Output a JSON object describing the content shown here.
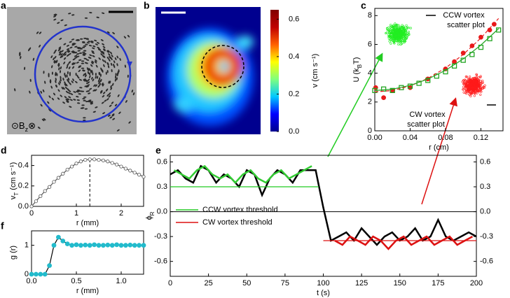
{
  "photo": {
    "label": "a",
    "field_parts": [
      "⊙B",
      "z",
      "⊗"
    ]
  },
  "chart_data": [
    {
      "type": "heatmap",
      "label": "b",
      "colorbar_label": "v (cm s⁻¹)",
      "clim": [
        0,
        0.65
      ],
      "cticks": [
        {
          "value": 0,
          "label": "0.0"
        },
        0.2,
        0.4,
        0.6
      ],
      "colormap": [
        "#00008f",
        "#0000ff",
        "#00c8ff",
        "#7fff7f",
        "#ffff00",
        "#ff6000",
        "#c00000",
        "#800000"
      ]
    },
    {
      "type": "scatter",
      "label": "c",
      "xlabel": "r (cm)",
      "ylabel": [
        "U (k",
        "B",
        "T)"
      ],
      "xlim": [
        0,
        0.145
      ],
      "ylim": [
        0,
        8.5
      ],
      "xticks": [
        {
          "value": 0,
          "label": "0.00"
        },
        0.04,
        0.08,
        0.12
      ],
      "yticks": [
        0,
        2,
        4,
        6,
        8
      ],
      "series": [
        {
          "color": "#e8191a",
          "style": "none",
          "marker": "circle",
          "x": [
            0.001,
            0.01,
            0.02,
            0.04,
            0.06,
            0.08,
            0.09,
            0.1,
            0.11,
            0.12,
            0.13,
            0.135
          ],
          "values": [
            3.0,
            2.3,
            2.8,
            3.0,
            3.6,
            4.3,
            4.8,
            5.4,
            5.9,
            6.5,
            7.0,
            7.4
          ]
        },
        {
          "color": "#22a522",
          "style": "none",
          "marker": "square-open",
          "x": [
            0,
            0.01,
            0.02,
            0.03,
            0.04,
            0.05,
            0.06,
            0.07,
            0.08,
            0.09,
            0.1,
            0.11,
            0.12,
            0.13,
            0.14
          ],
          "values": [
            2.8,
            2.9,
            2.8,
            3.0,
            3.1,
            3.3,
            3.5,
            3.8,
            4.1,
            4.5,
            4.9,
            5.3,
            5.8,
            6.4,
            7.0
          ]
        },
        {
          "color": "#e8191a",
          "style": "dashed",
          "marker": "none",
          "x": [
            0,
            0.02,
            0.04,
            0.06,
            0.08,
            0.1,
            0.12,
            0.14
          ],
          "values": [
            2.7,
            2.8,
            3.12,
            3.64,
            4.36,
            5.3,
            6.44,
            7.8
          ]
        },
        {
          "color": "#22a522",
          "style": "solid",
          "marker": "none",
          "x": [
            0,
            0.02,
            0.04,
            0.06,
            0.08,
            0.1,
            0.12,
            0.14
          ],
          "values": [
            2.8,
            2.89,
            3.15,
            3.59,
            4.2,
            4.99,
            5.95,
            7.09
          ]
        }
      ],
      "insets": [
        {
          "title": "CCW vortex",
          "subtitle": "scatter plot",
          "color": "#22ee22"
        },
        {
          "title": "CW vortex",
          "subtitle": "scatter plot",
          "color": "#ff1a1a"
        }
      ]
    },
    {
      "type": "line",
      "label": "d",
      "xlabel": "r (mm)",
      "ylabel": [
        "v",
        "T",
        " (cm s⁻¹)"
      ],
      "xlim": [
        0,
        2.5
      ],
      "ylim": [
        0,
        0.5
      ],
      "xticks": [
        0,
        1,
        2
      ],
      "yticks": [
        {
          "value": 0,
          "label": "0.0"
        },
        0.2,
        0.4
      ],
      "vline": 1.3,
      "series": [
        {
          "color": "#555555",
          "style": "solid",
          "marker": "circle-open",
          "x": [
            0,
            0.1,
            0.2,
            0.3,
            0.4,
            0.5,
            0.6,
            0.7,
            0.8,
            0.9,
            1.0,
            1.1,
            1.2,
            1.3,
            1.4,
            1.5,
            1.6,
            1.7,
            1.8,
            1.9,
            2.0,
            2.1,
            2.2,
            2.3,
            2.4,
            2.5
          ],
          "values": [
            0,
            0.05,
            0.1,
            0.15,
            0.19,
            0.24,
            0.28,
            0.32,
            0.36,
            0.39,
            0.42,
            0.44,
            0.455,
            0.46,
            0.46,
            0.455,
            0.45,
            0.44,
            0.425,
            0.41,
            0.39,
            0.37,
            0.35,
            0.33,
            0.31,
            0.29
          ]
        }
      ]
    },
    {
      "type": "line",
      "label": "e",
      "xlabel": "t (s)",
      "ylabel": [
        "ϕ",
        "R"
      ],
      "xlim": [
        0,
        200
      ],
      "ylim": [
        -0.78,
        0.68
      ],
      "y2lim": [
        -0.78,
        0.68
      ],
      "xticks": [
        0,
        25,
        50,
        75,
        100,
        125,
        150,
        175,
        200
      ],
      "yticks": [
        0.6,
        0.3,
        {
          "value": 0,
          "label": "0.0"
        },
        -0.3,
        -0.6
      ],
      "y2ticks": [
        0.6,
        0.3,
        {
          "value": 0,
          "label": "0.0"
        },
        -0.3,
        -0.6
      ],
      "hline": 0,
      "legend": "lower-left",
      "series": [
        {
          "color": "#000000",
          "style": "solid",
          "marker": "none",
          "line_width": 2.5,
          "x": [
            0,
            5,
            10,
            15,
            20,
            25,
            30,
            35,
            40,
            45,
            50,
            55,
            60,
            65,
            70,
            75,
            80,
            85,
            90,
            95,
            100,
            105,
            110,
            115,
            120,
            125,
            130,
            135,
            140,
            145,
            150,
            155,
            160,
            165,
            170,
            175,
            180,
            185,
            190,
            195,
            200
          ],
          "values": [
            0.45,
            0.5,
            0.4,
            0.35,
            0.55,
            0.5,
            0.35,
            0.45,
            0.4,
            0.3,
            0.5,
            0.45,
            0.2,
            0.4,
            0.5,
            0.45,
            0.35,
            0.5,
            0.5,
            0.5,
            0.05,
            -0.35,
            -0.3,
            -0.25,
            -0.35,
            -0.2,
            -0.3,
            -0.4,
            -0.3,
            -0.25,
            -0.35,
            -0.3,
            -0.2,
            -0.35,
            -0.3,
            -0.1,
            -0.3,
            -0.35,
            -0.3,
            -0.25,
            -0.3
          ]
        },
        {
          "color": "#33cc33",
          "style": "solid",
          "marker": "none",
          "line_width": 2.5,
          "x": [
            2.5,
            7.5,
            12.5,
            17.5,
            22.5,
            27.5,
            32.5,
            37.5,
            42.5,
            47.5,
            52.5,
            57.5,
            62.5,
            67.5,
            72.5,
            77.5,
            82.5,
            87.5,
            92.5
          ],
          "values": [
            0.5,
            0.45,
            0.4,
            0.5,
            0.55,
            0.45,
            0.4,
            0.45,
            0.35,
            0.45,
            0.5,
            0.4,
            0.35,
            0.45,
            0.5,
            0.4,
            0.45,
            0.5,
            0.55
          ]
        },
        {
          "color": "#dd1111",
          "style": "solid",
          "marker": "none",
          "line_width": 2.5,
          "x": [
            107.5,
            112.5,
            117.5,
            122.5,
            127.5,
            132.5,
            137.5,
            142.5,
            147.5,
            152.5,
            157.5,
            162.5,
            167.5,
            172.5,
            177.5,
            182.5,
            187.5,
            192.5,
            197.5
          ],
          "values": [
            -0.35,
            -0.4,
            -0.3,
            -0.35,
            -0.4,
            -0.3,
            -0.35,
            -0.45,
            -0.35,
            -0.3,
            -0.4,
            -0.35,
            -0.3,
            -0.4,
            -0.35,
            -0.3,
            -0.4,
            -0.35,
            -0.3
          ]
        },
        {
          "name": "CCW vortex threshold",
          "color": "#22cc22",
          "style": "solid",
          "marker": "none",
          "x": [
            0,
            97
          ],
          "values": [
            0.3,
            0.3
          ]
        },
        {
          "name": "CW vortex threshold",
          "color": "#dd1111",
          "style": "solid",
          "marker": "none",
          "x": [
            100,
            200
          ],
          "values": [
            -0.35,
            -0.35
          ]
        }
      ]
    },
    {
      "type": "line",
      "label": "f",
      "xlabel": "r (mm)",
      "ylabel": [
        "g (r)"
      ],
      "xlim": [
        0,
        1.25
      ],
      "ylim": [
        0,
        1.5
      ],
      "xticks": [
        {
          "value": 0,
          "label": "0.0"
        },
        0.5,
        {
          "value": 1,
          "label": "1.0"
        }
      ],
      "yticks": [
        0,
        1
      ],
      "series": [
        {
          "color": "#000000",
          "marker_color": "#22bbcc",
          "style": "solid",
          "marker": "circle",
          "x": [
            0,
            0.05,
            0.1,
            0.15,
            0.2,
            0.25,
            0.3,
            0.35,
            0.4,
            0.45,
            0.5,
            0.55,
            0.6,
            0.65,
            0.7,
            0.75,
            0.8,
            0.85,
            0.9,
            0.95,
            1.0,
            1.05,
            1.1,
            1.15,
            1.2,
            1.25
          ],
          "values": [
            0,
            0,
            0,
            0,
            0.3,
            1.0,
            1.28,
            1.15,
            1.05,
            1.0,
            1.02,
            1.0,
            1.01,
            1.0,
            1.02,
            1.0,
            1.0,
            1.01,
            1.0,
            1.02,
            1.0,
            1.0,
            1.01,
            1.0,
            1.0,
            1.0
          ]
        }
      ]
    }
  ]
}
